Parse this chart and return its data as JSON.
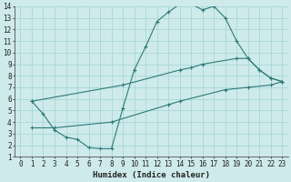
{
  "xlabel": "Humidex (Indice chaleur)",
  "bg_color": "#ceeaea",
  "grid_color": "#a8d8d8",
  "line_color": "#2d7a7a",
  "xlim": [
    -0.5,
    23.5
  ],
  "ylim": [
    1,
    14
  ],
  "xticks": [
    0,
    1,
    2,
    3,
    4,
    5,
    6,
    7,
    8,
    9,
    10,
    11,
    12,
    13,
    14,
    15,
    16,
    17,
    18,
    19,
    20,
    21,
    22,
    23
  ],
  "yticks": [
    1,
    2,
    3,
    4,
    5,
    6,
    7,
    8,
    9,
    10,
    11,
    12,
    13,
    14
  ],
  "line1_x": [
    1,
    2,
    3,
    4,
    5,
    6,
    7,
    8,
    9,
    10,
    11,
    12,
    13,
    14,
    15,
    16,
    17,
    18,
    19,
    20,
    21,
    22,
    23
  ],
  "line1_y": [
    5.8,
    4.7,
    3.3,
    2.7,
    2.5,
    1.8,
    1.7,
    1.7,
    5.2,
    8.5,
    10.5,
    12.7,
    13.5,
    14.2,
    14.2,
    13.7,
    14.0,
    13.0,
    11.0,
    9.5,
    8.5,
    7.8,
    7.5
  ],
  "line2_x": [
    1,
    9,
    14,
    15,
    16,
    19,
    20,
    21,
    22,
    23
  ],
  "line2_y": [
    5.8,
    7.2,
    8.5,
    8.7,
    9.0,
    9.5,
    9.5,
    8.5,
    7.8,
    7.5
  ],
  "line3_x": [
    1,
    3,
    8,
    13,
    14,
    18,
    20,
    22,
    23
  ],
  "line3_y": [
    3.5,
    3.5,
    4.0,
    5.5,
    5.8,
    6.8,
    7.0,
    7.2,
    7.5
  ]
}
